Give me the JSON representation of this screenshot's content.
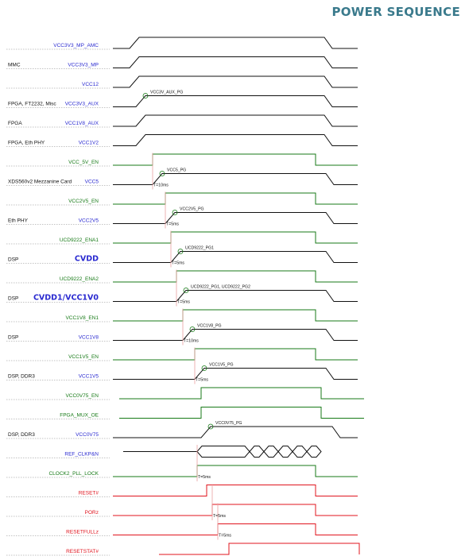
{
  "title": "POWER SEQUENCE",
  "colors": {
    "black": "#111111",
    "blue": "#2a2ad0",
    "green": "#177a17",
    "red": "#e0141e",
    "marker": "#e8a0a0",
    "title": "#3a7a8c"
  },
  "signals": [
    {
      "name": "VCC3V3_MP_AMC",
      "prefix": "",
      "color": "blue",
      "wave": "black",
      "kind": "supply",
      "start": 163,
      "end": 408
    },
    {
      "name": "VCC3V3_MP",
      "prefix": "MMC",
      "color": "blue",
      "wave": "black",
      "kind": "supply",
      "start": 163,
      "end": 408
    },
    {
      "name": "VCC12",
      "prefix": "",
      "color": "blue",
      "wave": "black",
      "kind": "supply",
      "start": 163,
      "end": 408
    },
    {
      "name": "VCC3V3_AUX",
      "prefix": "FPGA, FT2232, Misc",
      "color": "blue",
      "wave": "black",
      "kind": "supply",
      "start": 171,
      "end": 408,
      "pg": "VCC3V_AUX_PG"
    },
    {
      "name": "VCC1V8_AUX",
      "prefix": "FPGA",
      "color": "blue",
      "wave": "black",
      "kind": "supply",
      "start": 171,
      "end": 408
    },
    {
      "name": "VCC1V2",
      "prefix": "FPGA, Eth PHY",
      "color": "blue",
      "wave": "black",
      "kind": "supply",
      "start": 171,
      "end": 408
    },
    {
      "name": "VCC_5V_EN",
      "prefix": "",
      "color": "green",
      "wave": "green",
      "kind": "enable",
      "start": 192,
      "end": 397
    },
    {
      "name": "VCC5",
      "prefix": "XDS560v2 Mezzanine Card",
      "color": "blue",
      "wave": "black",
      "kind": "supply",
      "start": 192,
      "end": 410,
      "pg": "VCC5_PG",
      "delay": "T=10ms"
    },
    {
      "name": "VCC2V5_EN",
      "prefix": "",
      "color": "green",
      "wave": "green",
      "kind": "enable",
      "start": 208,
      "end": 397
    },
    {
      "name": "VCC2V5",
      "prefix": "Eth PHY",
      "color": "blue",
      "wave": "black",
      "kind": "supply",
      "start": 208,
      "end": 410,
      "pg": "VCC2V5_PG",
      "delay": "T=5ms"
    },
    {
      "name": "UCD9222_ENA1",
      "prefix": "",
      "color": "green",
      "wave": "green",
      "kind": "enable",
      "start": 215,
      "end": 397
    },
    {
      "name": "CVDD",
      "prefix": "DSP",
      "color": "blue",
      "wave": "black",
      "kind": "supply",
      "start": 215,
      "end": 410,
      "pg": "UCD9222_PG1",
      "delay": "T=5ms",
      "big": true
    },
    {
      "name": "UCD9222_ENA2",
      "prefix": "",
      "color": "green",
      "wave": "green",
      "kind": "enable",
      "start": 222,
      "end": 397
    },
    {
      "name": "CVDD1/VCC1V0",
      "prefix": "DSP",
      "color": "blue",
      "wave": "black",
      "kind": "supply",
      "start": 222,
      "end": 410,
      "pg": "UCD9222_PG1, UCD9222_PG2",
      "delay": "T=5ms",
      "big": true
    },
    {
      "name": "VCC1V8_EN1",
      "prefix": "",
      "color": "green",
      "wave": "green",
      "kind": "enable",
      "start": 230,
      "end": 397
    },
    {
      "name": "VCC1V8",
      "prefix": "DSP",
      "color": "blue",
      "wave": "black",
      "kind": "supply",
      "start": 230,
      "end": 410,
      "pg": "VCC1V8_PG",
      "delay": "T=10ms"
    },
    {
      "name": "VCC1V5_EN",
      "prefix": "",
      "color": "green",
      "wave": "green",
      "kind": "enable",
      "start": 245,
      "end": 397
    },
    {
      "name": "VCC1V5",
      "prefix": "DSP, DDR3",
      "color": "blue",
      "wave": "black",
      "kind": "supply",
      "start": 245,
      "end": 410,
      "pg": "VCC1V5_PG",
      "delay": "T=5ms"
    },
    {
      "name": "VCC0V75_EN",
      "prefix": "",
      "color": "green",
      "wave": "green",
      "kind": "enable",
      "start": 253,
      "end": 404
    },
    {
      "name": "FPGA_MUX_OE",
      "prefix": "",
      "color": "green",
      "wave": "green",
      "kind": "enable",
      "start": 253,
      "end": 404
    },
    {
      "name": "VCC0V75",
      "prefix": "DSP, DDR3",
      "color": "blue",
      "wave": "black",
      "kind": "supply",
      "start": 253,
      "end": 418,
      "pg": "VCC0V75_PG"
    },
    {
      "name": "REF_CLKP&N",
      "prefix": "",
      "color": "blue",
      "wave": "black",
      "kind": "clock",
      "start": 248,
      "end": 410
    },
    {
      "name": "CLOCK2_PLL_LOCK",
      "prefix": "",
      "color": "green",
      "wave": "green",
      "kind": "enable",
      "start": 248,
      "end": 397,
      "delay": "T=5ms"
    },
    {
      "name": "RESET#",
      "prefix": "",
      "color": "red",
      "wave": "red",
      "kind": "enable",
      "start": 260,
      "end": 397
    },
    {
      "name": "PORz",
      "prefix": "",
      "color": "red",
      "wave": "red",
      "kind": "enable",
      "start": 267,
      "end": 397,
      "delay": "T=5ms"
    },
    {
      "name": "RESETFULLz",
      "prefix": "",
      "color": "red",
      "wave": "red",
      "kind": "enable",
      "start": 274,
      "end": 397,
      "delay": "T=5ms"
    },
    {
      "name": "RESETSTAT#",
      "prefix": "",
      "color": "red",
      "wave": "red",
      "kind": "enable",
      "start": 288,
      "end": 452
    }
  ]
}
